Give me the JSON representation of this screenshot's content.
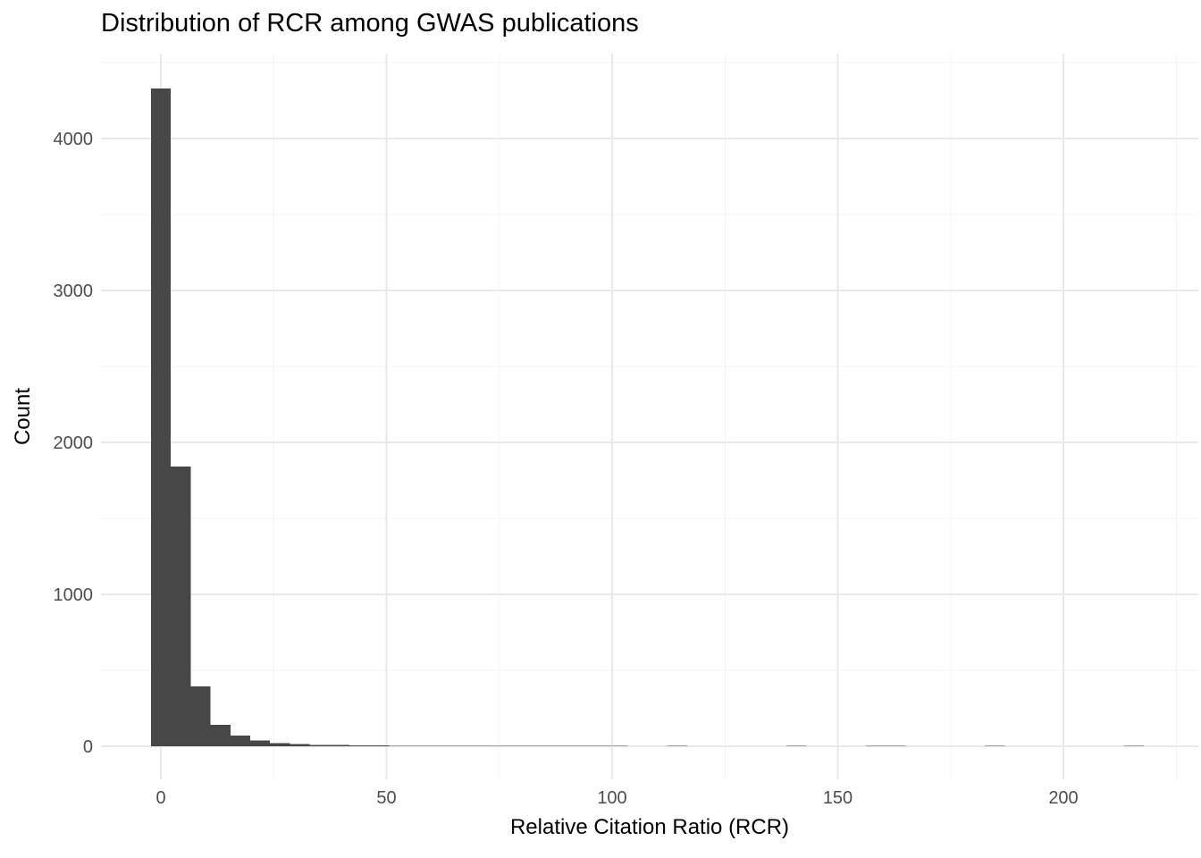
{
  "chart_data": {
    "type": "bar",
    "subtype": "histogram",
    "title": "Distribution of RCR among GWAS publications",
    "xlabel": "Relative Citation Ratio (RCR)",
    "ylabel": "Count",
    "bin_width": 4.4,
    "bin_centers": [
      0,
      4.4,
      8.8,
      13.2,
      17.6,
      22,
      26.4,
      30.8,
      35.2,
      39.6,
      44,
      48.4,
      52.8,
      57.2,
      61.6,
      66,
      70.4,
      74.8,
      79.2,
      83.6,
      88,
      92.4,
      96.8,
      101.2,
      105.6,
      110,
      114.4,
      118.8,
      123.2,
      127.6,
      132,
      136.4,
      140.8,
      145.2,
      149.6,
      154,
      158.4,
      162.8,
      167.2,
      171.6,
      176,
      180.4,
      184.8,
      189.2,
      193.6,
      198,
      202.4,
      206.8,
      211.2,
      215.6
    ],
    "counts": [
      4330,
      1840,
      395,
      140,
      70,
      38,
      22,
      14,
      10,
      8,
      7,
      6,
      5,
      4,
      4,
      3,
      3,
      2,
      2,
      2,
      1,
      1,
      2,
      1,
      0,
      0,
      1,
      0,
      0,
      0,
      0,
      0,
      1,
      0,
      0,
      0,
      1,
      1,
      0,
      0,
      0,
      0,
      1,
      0,
      0,
      0,
      0,
      0,
      0,
      1
    ],
    "x_ticks": [
      0,
      50,
      100,
      150,
      200
    ],
    "x_minor_ticks": [
      25,
      75,
      125,
      175,
      225
    ],
    "y_ticks": [
      0,
      1000,
      2000,
      3000,
      4000
    ],
    "y_minor_ticks": [
      500,
      1500,
      2500,
      3500,
      4500
    ],
    "xlim": [
      -13,
      230
    ],
    "ylim": [
      -215,
      4560
    ],
    "grid": "major and minor, no axis lines, no tick marks",
    "legend_position": "none",
    "colors": {
      "bar_fill": "#474747",
      "grid_major": "#e9e9e9",
      "grid_minor": "#f4f4f4",
      "tick_label": "#4d4d4d",
      "text": "#000000",
      "background": "#ffffff"
    }
  }
}
